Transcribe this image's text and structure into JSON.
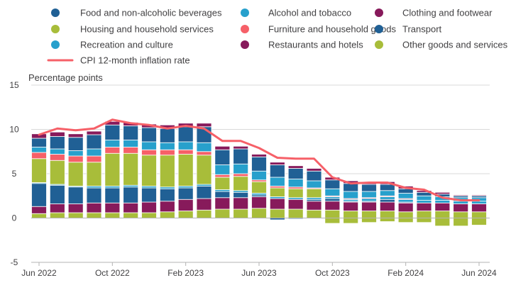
{
  "chart_data": {
    "type": "bar",
    "stacked": true,
    "ylabel": "Percentage points",
    "ylim": [
      -5,
      15
    ],
    "yticks": [
      -5,
      0,
      5,
      10,
      15
    ],
    "categories": [
      "Jun 2022",
      "Jul 2022",
      "Aug 2022",
      "Sep 2022",
      "Oct 2022",
      "Nov 2022",
      "Dec 2022",
      "Jan 2023",
      "Feb 2023",
      "Mar 2023",
      "Apr 2023",
      "May 2023",
      "Jun 2023",
      "Jul 2023",
      "Aug 2023",
      "Sep 2023",
      "Oct 2023",
      "Nov 2023",
      "Dec 2023",
      "Jan 2024",
      "Feb 2024",
      "Mar 2024",
      "Apr 2024",
      "May 2024",
      "Jun 2024"
    ],
    "xtick_labels": [
      "Jun 2022",
      "Oct 2022",
      "Feb 2023",
      "Jun 2023",
      "Oct 2023",
      "Feb 2024",
      "Jun 2024"
    ],
    "legend_position": "top",
    "series": [
      {
        "name": "Food and non-alcoholic beverages",
        "color": "#206095",
        "legend_order": 0,
        "stack_order": 7,
        "values": [
          1.0,
          1.4,
          1.5,
          1.6,
          1.7,
          1.6,
          1.6,
          1.6,
          1.7,
          1.8,
          1.7,
          1.7,
          1.6,
          1.4,
          1.2,
          1.1,
          1.0,
          0.9,
          0.8,
          0.7,
          0.5,
          0.4,
          0.3,
          0.2,
          0.2
        ]
      },
      {
        "name": "Alcohol and tobacco",
        "color": "#27a0cc",
        "legend_order": 1,
        "stack_order": 3,
        "values": [
          0.1,
          0.1,
          0.1,
          0.2,
          0.2,
          0.2,
          0.2,
          0.2,
          0.2,
          0.2,
          0.2,
          0.2,
          0.2,
          0.2,
          0.2,
          0.2,
          0.2,
          0.2,
          0.3,
          0.3,
          0.3,
          0.3,
          0.3,
          0.3,
          0.3
        ]
      },
      {
        "name": "Clothing and footwear",
        "color": "#871a5b",
        "legend_order": 2,
        "stack_order": 8,
        "values": [
          0.5,
          0.5,
          0.4,
          0.4,
          0.4,
          0.4,
          0.4,
          0.4,
          0.4,
          0.4,
          0.4,
          0.3,
          0.3,
          0.3,
          0.3,
          0.3,
          0.3,
          0.3,
          0.3,
          0.3,
          0.3,
          0.2,
          0.2,
          0.1,
          0.1
        ]
      },
      {
        "name": "Housing and household services",
        "color": "#a8bd3a",
        "legend_order": 3,
        "stack_order": 4,
        "values": [
          2.7,
          2.7,
          2.7,
          2.7,
          3.7,
          3.6,
          3.5,
          3.6,
          3.6,
          3.3,
          1.4,
          1.6,
          1.3,
          1.0,
          1.0,
          1.0,
          -0.6,
          -0.6,
          -0.5,
          -0.4,
          -0.5,
          -0.5,
          -0.9,
          -0.9,
          -0.8
        ]
      },
      {
        "name": "Furniture and household goods",
        "color": "#f66068",
        "legend_order": 4,
        "stack_order": 5,
        "values": [
          0.7,
          0.7,
          0.7,
          0.7,
          0.7,
          0.7,
          0.6,
          0.6,
          0.5,
          0.4,
          0.3,
          0.3,
          0.2,
          0.2,
          0.2,
          0.1,
          0.1,
          0.1,
          0.1,
          0.1,
          0.1,
          0.0,
          0.0,
          0.0,
          0.0
        ]
      },
      {
        "name": "Transport",
        "color": "#206095",
        "legend_order": 5,
        "stack_order": 2,
        "values": [
          2.6,
          2.1,
          1.9,
          1.7,
          1.7,
          1.8,
          1.6,
          1.4,
          1.3,
          1.4,
          0.7,
          0.6,
          0.2,
          -0.2,
          -0.1,
          0.2,
          0.3,
          0.1,
          0.1,
          0.3,
          0.1,
          0.0,
          0.0,
          0.0,
          0.0
        ]
      },
      {
        "name": "Recreation and culture",
        "color": "#27a0cc",
        "legend_order": 6,
        "stack_order": 6,
        "values": [
          0.6,
          0.6,
          0.6,
          0.8,
          0.8,
          0.8,
          0.9,
          0.8,
          0.9,
          1.0,
          1.1,
          1.1,
          1.0,
          1.0,
          0.9,
          0.8,
          0.8,
          0.8,
          0.7,
          0.6,
          0.6,
          0.5,
          0.4,
          0.4,
          0.4
        ]
      },
      {
        "name": "Restaurants and hotels",
        "color": "#871a5b",
        "legend_order": 7,
        "stack_order": 1,
        "values": [
          0.8,
          1.0,
          1.0,
          1.1,
          1.1,
          1.1,
          1.2,
          1.2,
          1.3,
          1.3,
          1.3,
          1.3,
          1.3,
          1.2,
          1.1,
          1.0,
          1.0,
          1.0,
          1.0,
          1.0,
          1.0,
          0.9,
          0.9,
          0.9,
          0.9
        ]
      },
      {
        "name": "Other goods and services",
        "color": "#a8bd3a",
        "legend_order": 8,
        "stack_order": 0,
        "values": [
          0.5,
          0.6,
          0.6,
          0.6,
          0.6,
          0.6,
          0.6,
          0.7,
          0.8,
          0.9,
          1.0,
          1.0,
          1.1,
          1.0,
          1.0,
          0.9,
          0.9,
          0.8,
          0.8,
          0.8,
          0.7,
          0.8,
          0.8,
          0.7,
          0.7
        ]
      }
    ],
    "line": {
      "name": "CPI 12-month inflation rate",
      "color": "#f66068",
      "values": [
        9.4,
        10.1,
        9.9,
        10.1,
        11.1,
        10.7,
        10.5,
        10.1,
        10.4,
        10.1,
        8.7,
        8.7,
        7.9,
        6.8,
        6.7,
        6.7,
        4.6,
        3.9,
        4.0,
        4.0,
        3.4,
        3.2,
        2.3,
        2.0,
        2.0
      ]
    }
  }
}
